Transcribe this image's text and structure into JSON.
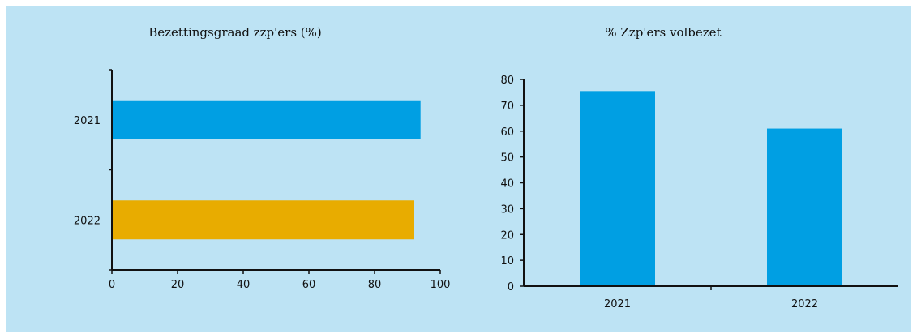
{
  "colors": {
    "background": "#bde3f4",
    "blue": "#009fe3",
    "yellow": "#e8ac00",
    "axis": "#111111"
  },
  "chart_data": [
    {
      "type": "bar",
      "orientation": "horizontal",
      "title": "Bezettingsgraad zzp'ers (%)",
      "categories": [
        "2021",
        "2022"
      ],
      "values": [
        94,
        92
      ],
      "bar_colors": [
        "#009fe3",
        "#e8ac00"
      ],
      "xlim": [
        0,
        100
      ],
      "xticks": [
        0,
        20,
        40,
        60,
        80,
        100
      ],
      "grid": false,
      "legend": "none"
    },
    {
      "type": "bar",
      "orientation": "vertical",
      "title": "% Zzp'ers volbezet",
      "categories": [
        "2021",
        "2022"
      ],
      "values": [
        75.5,
        61
      ],
      "bar_colors": [
        "#009fe3",
        "#009fe3"
      ],
      "ylim": [
        0,
        80
      ],
      "yticks": [
        0,
        10,
        20,
        30,
        40,
        50,
        60,
        70,
        80
      ],
      "grid": false,
      "legend": "none"
    }
  ]
}
